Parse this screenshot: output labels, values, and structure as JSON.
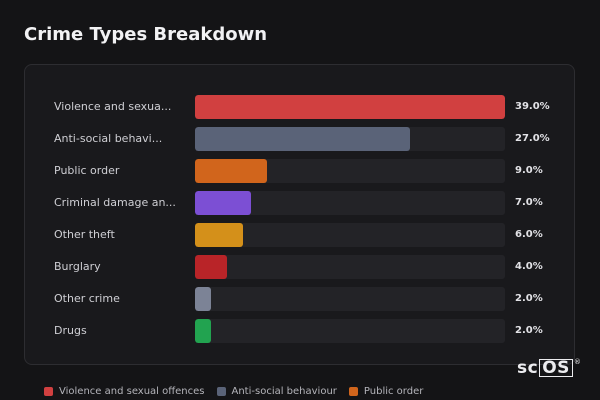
{
  "title": "Crime Types Breakdown",
  "chart_data": {
    "type": "bar",
    "orientation": "horizontal",
    "title": "Crime Types Breakdown",
    "xlim": [
      0,
      39.0
    ],
    "categories": [
      "Violence and sexua...",
      "Anti-social behavi...",
      "Public order",
      "Criminal damage an...",
      "Other theft",
      "Burglary",
      "Other crime",
      "Drugs"
    ],
    "values": [
      39.0,
      27.0,
      9.0,
      7.0,
      6.0,
      4.0,
      2.0,
      2.0
    ],
    "value_labels": [
      "39.0%",
      "27.0%",
      "9.0%",
      "7.0%",
      "6.0%",
      "4.0%",
      "2.0%",
      "2.0%"
    ],
    "colors": [
      "#d14040",
      "#5a6378",
      "#d1651c",
      "#7c4fd4",
      "#d4901a",
      "#b92428",
      "#7c8396",
      "#22a350"
    ],
    "legend": {
      "placement": "bottom",
      "entries": [
        {
          "label": "Violence and sexual offences",
          "color": "#d14040"
        },
        {
          "label": "Anti-social behaviour",
          "color": "#5a6378"
        },
        {
          "label": "Public order",
          "color": "#d1651c"
        }
      ]
    },
    "grid": false
  },
  "watermark": {
    "prefix": "sc",
    "boxed": "OS",
    "mark": "®"
  }
}
